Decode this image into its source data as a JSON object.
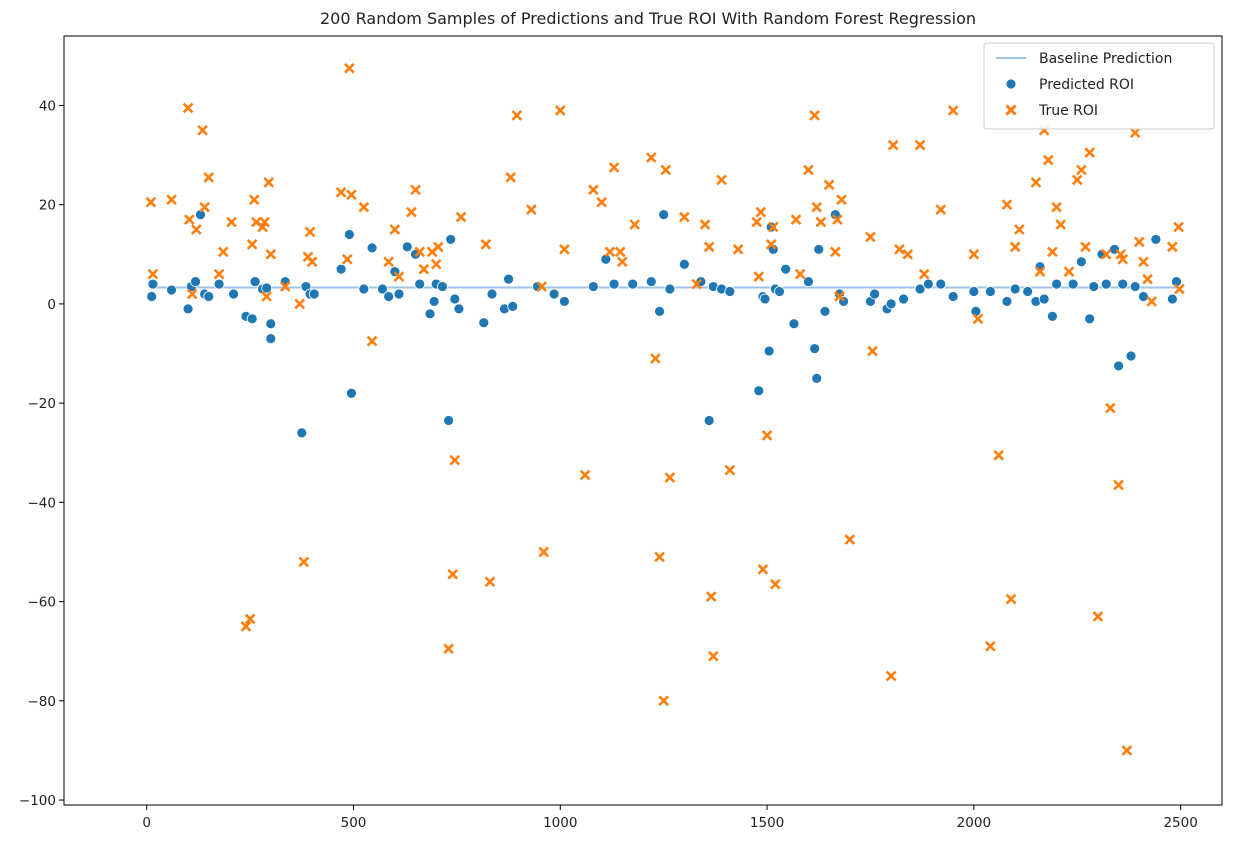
{
  "chart_data": {
    "type": "scatter",
    "title": "200 Random Samples of Predictions and True ROI With Random Forest Regression",
    "xlabel": "",
    "ylabel": "",
    "xlim": [
      -200,
      2600
    ],
    "ylim": [
      -101,
      54
    ],
    "xticks": [
      "0",
      "500",
      "1000",
      "1500",
      "2000",
      "2500"
    ],
    "xtick_values": [
      0,
      500,
      1000,
      1500,
      2000,
      2500
    ],
    "yticks": [
      "−100",
      "−80",
      "−60",
      "−40",
      "−20",
      "0",
      "20",
      "40"
    ],
    "ytick_values": [
      -100,
      -80,
      -60,
      -40,
      -20,
      0,
      20,
      40
    ],
    "grid": false,
    "legend_position": "top-right",
    "colors": {
      "baseline": "#9dc3e6",
      "predicted": "#1f77b4",
      "true": "#ff7f0e"
    },
    "series": [
      {
        "name": "Baseline Prediction",
        "kind": "line",
        "x": [
          10,
          2490
        ],
        "y": [
          3.3,
          3.3
        ]
      },
      {
        "name": "Predicted ROI",
        "kind": "scatter",
        "marker": "circle",
        "x": [
          12,
          15,
          60,
          100,
          108,
          118,
          130,
          140,
          150,
          175,
          210,
          240,
          255,
          262,
          280,
          290,
          300,
          300,
          335,
          375,
          385,
          395,
          405,
          470,
          490,
          495,
          525,
          545,
          570,
          585,
          600,
          610,
          630,
          650,
          660,
          685,
          695,
          700,
          715,
          730,
          735,
          745,
          755,
          815,
          835,
          865,
          875,
          885,
          945,
          985,
          1010,
          1080,
          1110,
          1130,
          1175,
          1220,
          1240,
          1250,
          1265,
          1300,
          1340,
          1360,
          1370,
          1390,
          1410,
          1480,
          1490,
          1495,
          1505,
          1510,
          1515,
          1520,
          1530,
          1545,
          1565,
          1600,
          1615,
          1620,
          1625,
          1640,
          1665,
          1675,
          1685,
          1750,
          1760,
          1790,
          1800,
          1830,
          1870,
          1890,
          1920,
          1950,
          2000,
          2005,
          2040,
          2080,
          2100,
          2130,
          2150,
          2160,
          2170,
          2190,
          2200,
          2240,
          2260,
          2280,
          2290,
          2310,
          2320,
          2340,
          2350,
          2360,
          2380,
          2390,
          2410,
          2440,
          2480,
          2490
        ],
        "y": [
          1.5,
          4,
          2.8,
          -1,
          3.5,
          4.5,
          18,
          2,
          1.5,
          4,
          2,
          -2.5,
          -3,
          4.5,
          3,
          3.2,
          -4,
          -7,
          4.5,
          -26,
          3.5,
          2,
          2,
          7,
          14,
          -18,
          3,
          11.3,
          3,
          1.5,
          6.5,
          2,
          11.5,
          10,
          4,
          -2,
          0.5,
          4,
          3.5,
          -23.5,
          13,
          1,
          -1,
          -3.8,
          2,
          -1,
          5,
          -0.5,
          3.5,
          2,
          0.5,
          3.5,
          9,
          4,
          4,
          4.5,
          -1.5,
          18,
          3,
          8,
          4.5,
          -23.5,
          3.5,
          3,
          2.5,
          -17.5,
          1.5,
          1,
          -9.5,
          15.5,
          11,
          3,
          2.5,
          7,
          -4,
          4.5,
          -9,
          -15,
          11,
          -1.5,
          18,
          2,
          0.5,
          0.5,
          2,
          -1,
          0,
          1,
          3,
          4,
          4,
          1.5,
          2.5,
          -1.5,
          2.5,
          0.5,
          3,
          2.5,
          0.5,
          7.5,
          1,
          -2.5,
          4,
          4,
          8.5,
          -3,
          3.5,
          10,
          4,
          11,
          -12.5,
          4,
          -10.5,
          3.5,
          1.5,
          13,
          1,
          4.5
        ]
      },
      {
        "name": "True ROI",
        "kind": "scatter",
        "marker": "x",
        "x": [
          10,
          15,
          60,
          100,
          103,
          110,
          120,
          135,
          140,
          150,
          175,
          185,
          205,
          240,
          250,
          255,
          260,
          265,
          280,
          285,
          290,
          295,
          300,
          335,
          370,
          380,
          390,
          395,
          400,
          470,
          485,
          490,
          495,
          525,
          545,
          585,
          600,
          610,
          640,
          650,
          660,
          670,
          690,
          700,
          705,
          730,
          740,
          745,
          760,
          820,
          830,
          880,
          895,
          930,
          955,
          960,
          1000,
          1010,
          1060,
          1080,
          1100,
          1120,
          1130,
          1145,
          1150,
          1180,
          1220,
          1230,
          1240,
          1250,
          1255,
          1265,
          1300,
          1330,
          1350,
          1360,
          1365,
          1370,
          1390,
          1410,
          1430,
          1475,
          1480,
          1485,
          1490,
          1500,
          1510,
          1515,
          1520,
          1570,
          1580,
          1600,
          1615,
          1620,
          1630,
          1650,
          1665,
          1670,
          1675,
          1680,
          1700,
          1750,
          1755,
          1800,
          1805,
          1820,
          1840,
          1870,
          1880,
          1920,
          1950,
          2000,
          2010,
          2040,
          2060,
          2080,
          2090,
          2100,
          2110,
          2150,
          2160,
          2170,
          2180,
          2190,
          2200,
          2210,
          2230,
          2250,
          2260,
          2270,
          2280,
          2300,
          2320,
          2330,
          2350,
          2355,
          2360,
          2370,
          2390,
          2400,
          2410,
          2420,
          2430,
          2480,
          2495,
          2497
        ],
        "y": [
          20.5,
          6,
          21,
          39.5,
          17,
          2,
          15,
          35,
          19.5,
          25.5,
          6,
          10.5,
          16.5,
          -65,
          -63.5,
          12,
          21,
          16.5,
          15.5,
          16.5,
          1.5,
          24.5,
          10,
          3.5,
          0,
          -52,
          9.5,
          14.5,
          8.5,
          22.5,
          9,
          47.5,
          22,
          19.5,
          -7.5,
          8.5,
          15,
          5.5,
          18.5,
          23,
          10.5,
          7,
          10.5,
          8,
          11.5,
          -69.5,
          -54.5,
          -31.5,
          17.5,
          12,
          -56,
          25.5,
          38,
          19,
          3.5,
          -50,
          39,
          11,
          -34.5,
          23,
          20.5,
          10.5,
          27.5,
          10.5,
          8.5,
          16,
          29.5,
          -11,
          -51,
          -80,
          27,
          -35,
          17.5,
          4,
          16,
          11.5,
          -59,
          -71,
          25,
          -33.5,
          11,
          16.5,
          5.5,
          18.5,
          -53.5,
          -26.5,
          12,
          15.5,
          -56.5,
          17,
          6,
          27,
          38,
          19.5,
          16.5,
          24,
          10.5,
          17,
          1.5,
          21,
          -47.5,
          13.5,
          -9.5,
          -75,
          32,
          11,
          10,
          32,
          6,
          19,
          39,
          10,
          -3,
          -69,
          -30.5,
          20,
          -59.5,
          11.5,
          15,
          24.5,
          6.5,
          35,
          29,
          10.5,
          19.5,
          16,
          6.5,
          25,
          27,
          11.5,
          30.5,
          -63,
          10,
          -21,
          -36.5,
          10,
          9,
          -90,
          34.5,
          12.5,
          8.5,
          5,
          0.5,
          11.5,
          15.5,
          3
        ]
      }
    ]
  }
}
